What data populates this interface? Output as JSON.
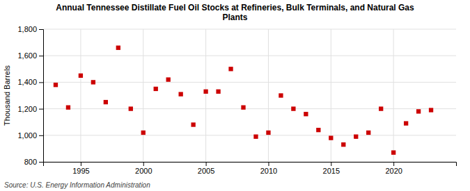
{
  "chart_data": {
    "type": "scatter",
    "title": "Annual Tennessee Distillate Fuel Oil Stocks at Refineries, Bulk Terminals, and Natural Gas\nPlants",
    "y_label": "Thousand Barrels",
    "source": "Source: U.S. Energy Information Administration",
    "x": [
      1993,
      1994,
      1995,
      1996,
      1997,
      1998,
      1999,
      2000,
      2001,
      2002,
      2003,
      2004,
      2005,
      2006,
      2007,
      2008,
      2009,
      2010,
      2011,
      2012,
      2013,
      2014,
      2015,
      2016,
      2017,
      2018,
      2019,
      2020,
      2021,
      2022,
      2023
    ],
    "values": [
      1380,
      1210,
      1450,
      1400,
      1250,
      1660,
      1200,
      1020,
      1350,
      1420,
      1310,
      1080,
      1330,
      1330,
      1500,
      1210,
      990,
      1020,
      1300,
      1200,
      1160,
      1040,
      980,
      930,
      990,
      1020,
      1200,
      870,
      1090,
      1180,
      1190
    ],
    "color": "#cc0000",
    "marker": "square",
    "xlim": [
      1992,
      2025
    ],
    "xticks": [
      1995,
      2000,
      2005,
      2010,
      2015,
      2020
    ],
    "ylim": [
      800,
      1800
    ],
    "yticks": [
      800,
      {
        "value": 1000,
        "label": "1,000"
      },
      {
        "value": 1200,
        "label": "1,200"
      },
      {
        "value": 1400,
        "label": "1,400"
      },
      {
        "value": 1600,
        "label": "1,600"
      },
      {
        "value": 1800,
        "label": "1,800"
      }
    ],
    "grid": true
  }
}
